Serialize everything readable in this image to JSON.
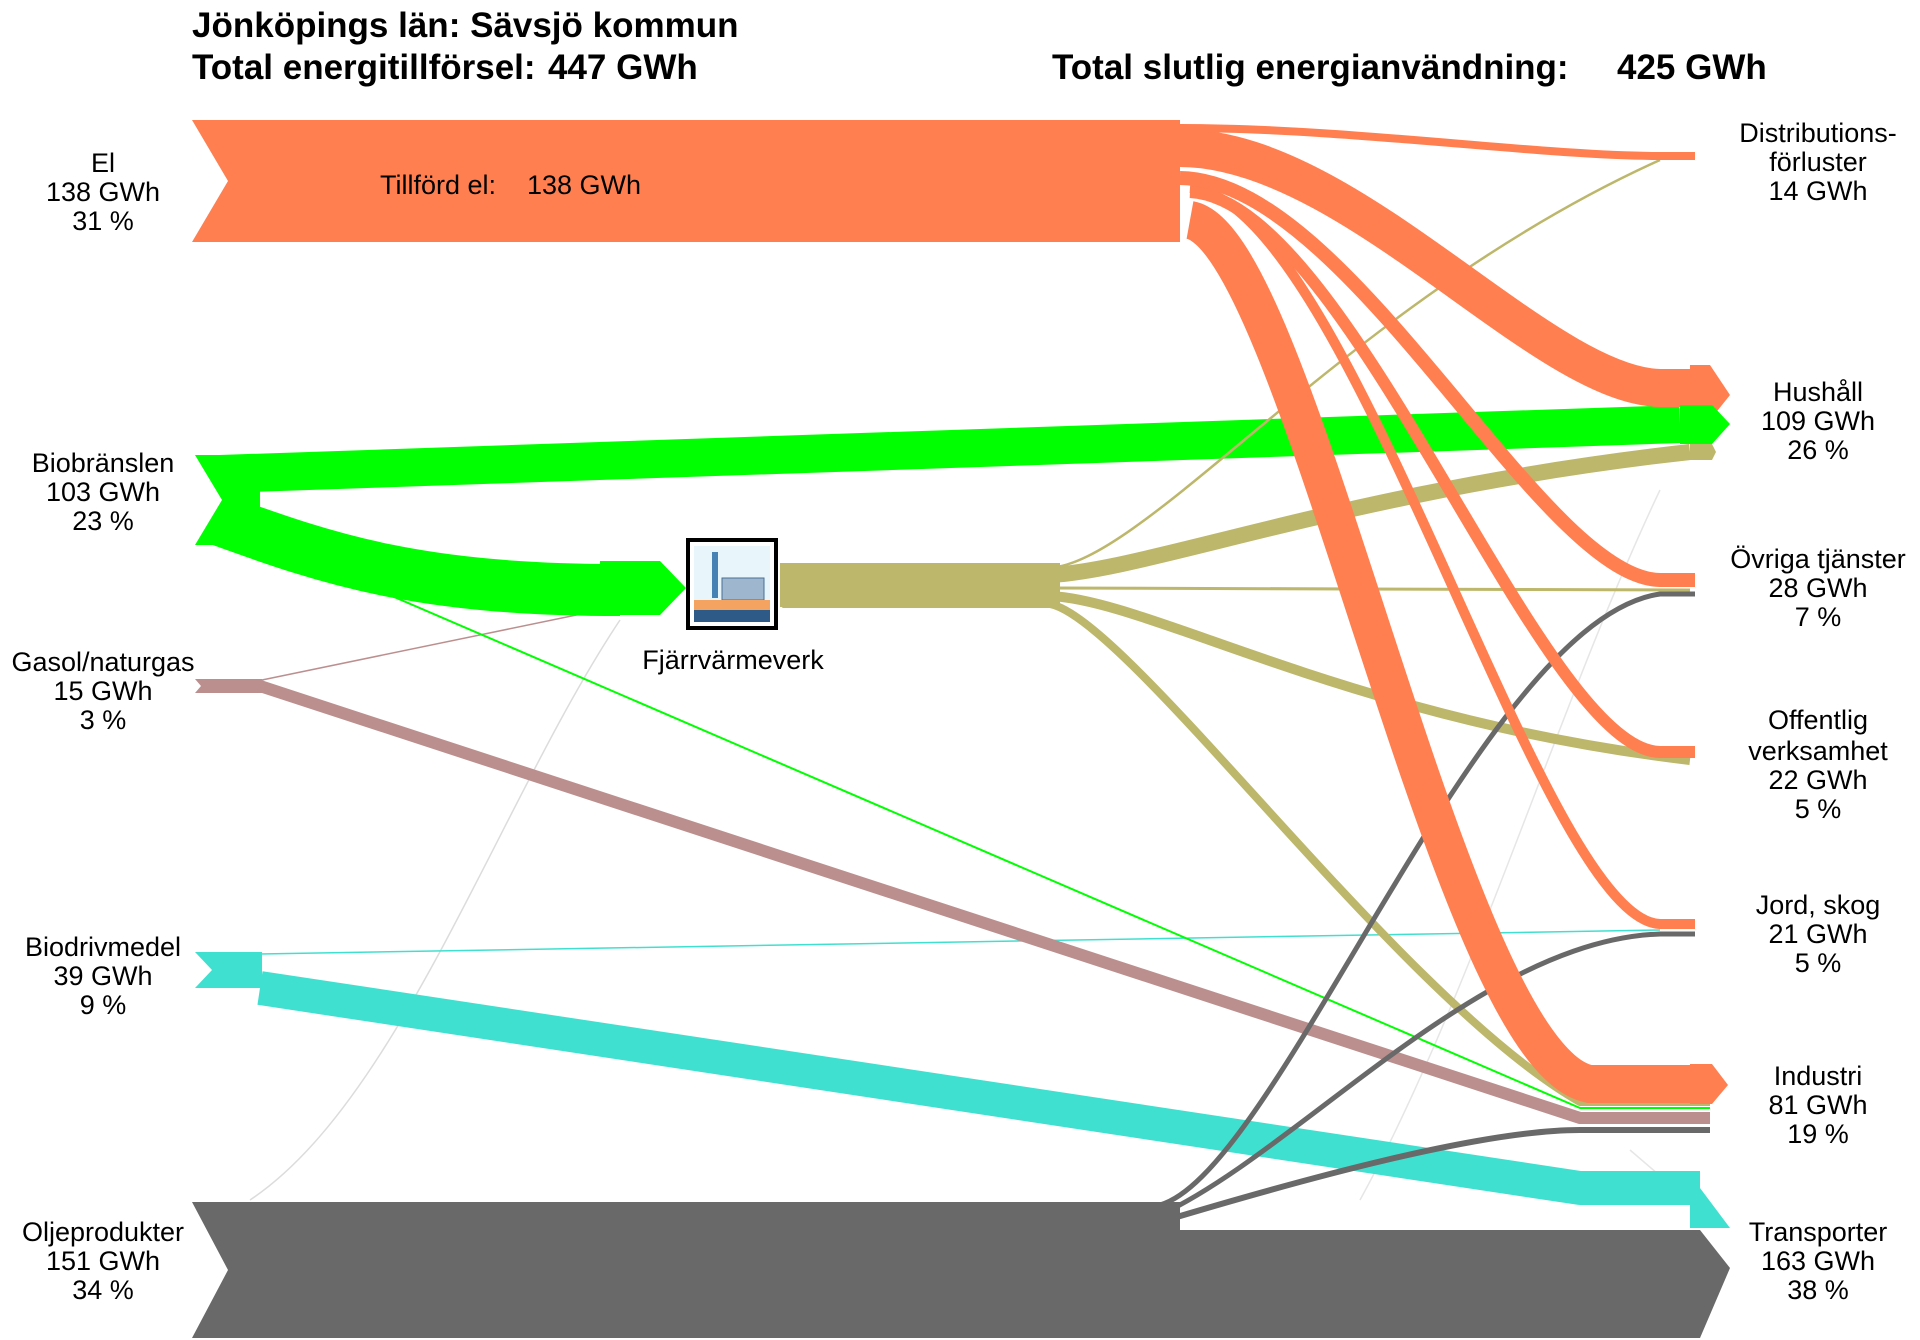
{
  "header": {
    "region": "Jönköpings län: Sävsjö kommun",
    "supply_label": "Total energitillförsel:",
    "supply_value": "447 GWh",
    "use_label": "Total slutlig energianvändning:",
    "use_value": "425 GWh"
  },
  "sources": [
    {
      "id": "el",
      "name": "El",
      "value": "138 GWh",
      "pct": "31 %",
      "color": "#ff7f50"
    },
    {
      "id": "bio",
      "name": "Biobränslen",
      "value": "103 GWh",
      "pct": "23 %",
      "color": "#00ff00"
    },
    {
      "id": "gas",
      "name": "Gasol/naturgas",
      "value": "15 GWh",
      "pct": "3 %",
      "color": "#bc8f8f"
    },
    {
      "id": "biodriv",
      "name": "Biodrivmedel",
      "value": "39 GWh",
      "pct": "9 %",
      "color": "#40e0d0"
    },
    {
      "id": "olja",
      "name": "Oljeprodukter",
      "value": "151 GWh",
      "pct": "34 %",
      "color": "#696969"
    }
  ],
  "plant": {
    "name": "Fjärrvärmeverk",
    "flow_color": "#bdb76b"
  },
  "el_inner": {
    "label": "Tillförd el:",
    "value": "138 GWh"
  },
  "sinks": [
    {
      "id": "dist",
      "lines": [
        "Distributions-",
        "förluster",
        "14 GWh"
      ]
    },
    {
      "id": "hus",
      "lines": [
        "Hushåll",
        "109 GWh",
        "26 %"
      ]
    },
    {
      "id": "ovr",
      "lines": [
        "Övriga tjänster",
        "28 GWh",
        "7 %"
      ]
    },
    {
      "id": "off",
      "lines": [
        "Offentlig",
        "verksamhet",
        "22 GWh",
        "5 %"
      ]
    },
    {
      "id": "jord",
      "lines": [
        "Jord, skog",
        "21 GWh",
        "5 %"
      ]
    },
    {
      "id": "ind",
      "lines": [
        "Industri",
        "81 GWh",
        "19 %"
      ]
    },
    {
      "id": "tra",
      "lines": [
        "Transporter",
        "163 GWh",
        "38 %"
      ]
    }
  ]
}
